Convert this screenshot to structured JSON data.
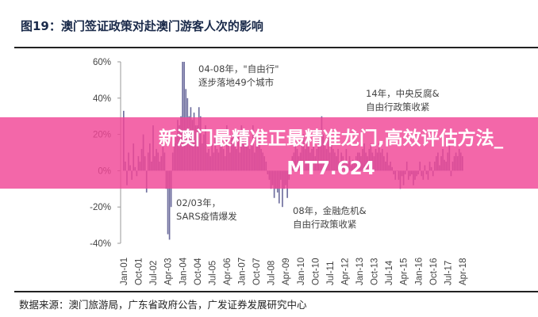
{
  "title": "图19：澳门签证政策对赴澳门游客人次的影响",
  "source": "数据来源：澳门旅游局，广东省政府公告，广发证券发展研究中心",
  "banner": {
    "line1": "新澳门最精准正最精准龙门,高效评估方法_",
    "line2": "MT7.624"
  },
  "annotations": [
    {
      "lines": [
        "04-08年，\"自由行\"",
        "逐步落地49个城市"
      ]
    },
    {
      "lines": [
        "14年，中央反腐&",
        "自由行政策收紧"
      ]
    },
    {
      "lines": [
        "02/03年，",
        "SARS疫情爆发"
      ]
    },
    {
      "lines": [
        "08年，金融危机&",
        "自由行政策收紧"
      ]
    }
  ],
  "chart_data": {
    "type": "bar",
    "title": "",
    "xlabel": "",
    "ylabel": "",
    "ylim": [
      -40,
      60
    ],
    "yticks": [
      "60%",
      "40%",
      "20%",
      "0%",
      "-20%",
      "-40%"
    ],
    "ytick_values": [
      60,
      40,
      20,
      0,
      -20,
      -40
    ],
    "xticks": [
      "Jan-01",
      "Oct-01",
      "Jul-02",
      "Apr-03",
      "Jan-04",
      "Oct-04",
      "Jul-05",
      "Apr-06",
      "Jan-07",
      "Oct-07",
      "Jul-08",
      "Apr-09",
      "Jan-10",
      "Oct-10",
      "Jul-11",
      "Apr-12",
      "Jan-13",
      "Oct-13",
      "Jul-14",
      "Apr-15",
      "Jan-16",
      "Oct-16",
      "Jul-17",
      "Apr-18"
    ],
    "x_start": "Jan-01",
    "x_end": "Apr-18",
    "frequency": "monthly",
    "bar_color": "#6e6e9e",
    "values": [
      33,
      5,
      -8,
      10,
      3,
      -5,
      15,
      2,
      -3,
      8,
      5,
      12,
      20,
      8,
      -12,
      10,
      15,
      5,
      25,
      8,
      12,
      10,
      5,
      8,
      15,
      10,
      -10,
      -35,
      -38,
      -20,
      10,
      15,
      20,
      28,
      25,
      30,
      60,
      60,
      45,
      40,
      30,
      35,
      28,
      32,
      25,
      25,
      35,
      30,
      15,
      20,
      25,
      10,
      12,
      8,
      15,
      10,
      18,
      12,
      10,
      15,
      20,
      12,
      8,
      25,
      15,
      10,
      18,
      22,
      15,
      12,
      20,
      10,
      25,
      20,
      15,
      18,
      22,
      12,
      15,
      25,
      10,
      20,
      15,
      18,
      12,
      10,
      8,
      5,
      -2,
      -5,
      -10,
      -8,
      -15,
      -10,
      -12,
      -18,
      -5,
      -20,
      -10,
      -8,
      -15,
      -5,
      5,
      8,
      10,
      15,
      12,
      8,
      10,
      15,
      20,
      12,
      18,
      15,
      10,
      12,
      15,
      8,
      12,
      20,
      15,
      30,
      20,
      15,
      12,
      18,
      10,
      15,
      12,
      10,
      8,
      12,
      5,
      10,
      8,
      5,
      12,
      5,
      8,
      3,
      6,
      5,
      8,
      10,
      10,
      8,
      12,
      15,
      10,
      8,
      12,
      15,
      10,
      8,
      12,
      10,
      15,
      10,
      12,
      8,
      5,
      10,
      3,
      5,
      2,
      -2,
      -5,
      0,
      -5,
      -10,
      -3,
      -8,
      -2,
      5,
      -5,
      -3,
      -2,
      -8,
      -5,
      -3,
      -2,
      5,
      -3,
      -5,
      3,
      -2,
      -5,
      5,
      2,
      -3,
      5,
      8,
      10,
      3,
      8,
      12,
      6,
      5,
      10,
      15,
      -3,
      5,
      8,
      10,
      8,
      12,
      10,
      8
    ]
  }
}
